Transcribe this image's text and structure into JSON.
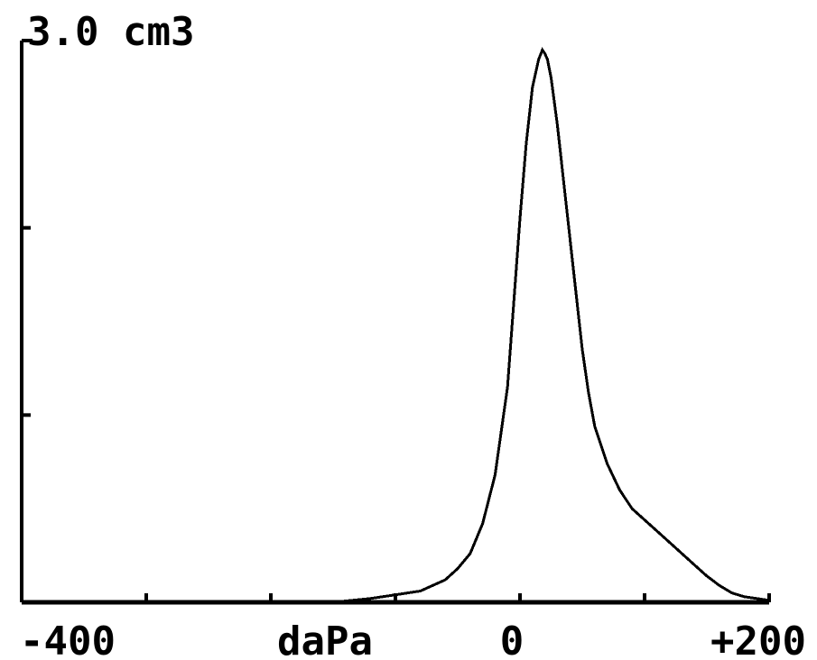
{
  "chart_data": {
    "type": "line",
    "title": "3.0 cm3",
    "xlabel": "daPa",
    "ylabel": "",
    "x_tick_labels": [
      "-400",
      "daPa",
      "0",
      "+200"
    ],
    "xlim": [
      -400,
      200
    ],
    "ylim": [
      0,
      3.0
    ],
    "y_ticks": [
      1.0,
      2.0
    ],
    "grid": false,
    "line_color": "#000000",
    "axis_color": "#000000",
    "series": [
      {
        "x": [
          -400,
          -300,
          -200,
          -150,
          -120,
          -100,
          -80,
          -60,
          -50,
          -40,
          -30,
          -20,
          -10,
          -5,
          0,
          5,
          10,
          15,
          18,
          20,
          22,
          25,
          30,
          35,
          40,
          45,
          50,
          55,
          60,
          70,
          80,
          90,
          100,
          120,
          140,
          150,
          160,
          170,
          180,
          190,
          200
        ],
        "y": [
          0.0,
          0.0,
          0.0,
          0.0,
          0.02,
          0.04,
          0.06,
          0.12,
          0.18,
          0.26,
          0.42,
          0.68,
          1.15,
          1.6,
          2.05,
          2.45,
          2.75,
          2.9,
          2.95,
          2.93,
          2.9,
          2.8,
          2.55,
          2.25,
          1.95,
          1.65,
          1.35,
          1.12,
          0.94,
          0.74,
          0.6,
          0.5,
          0.44,
          0.32,
          0.2,
          0.14,
          0.09,
          0.05,
          0.03,
          0.02,
          0.01
        ]
      }
    ]
  }
}
